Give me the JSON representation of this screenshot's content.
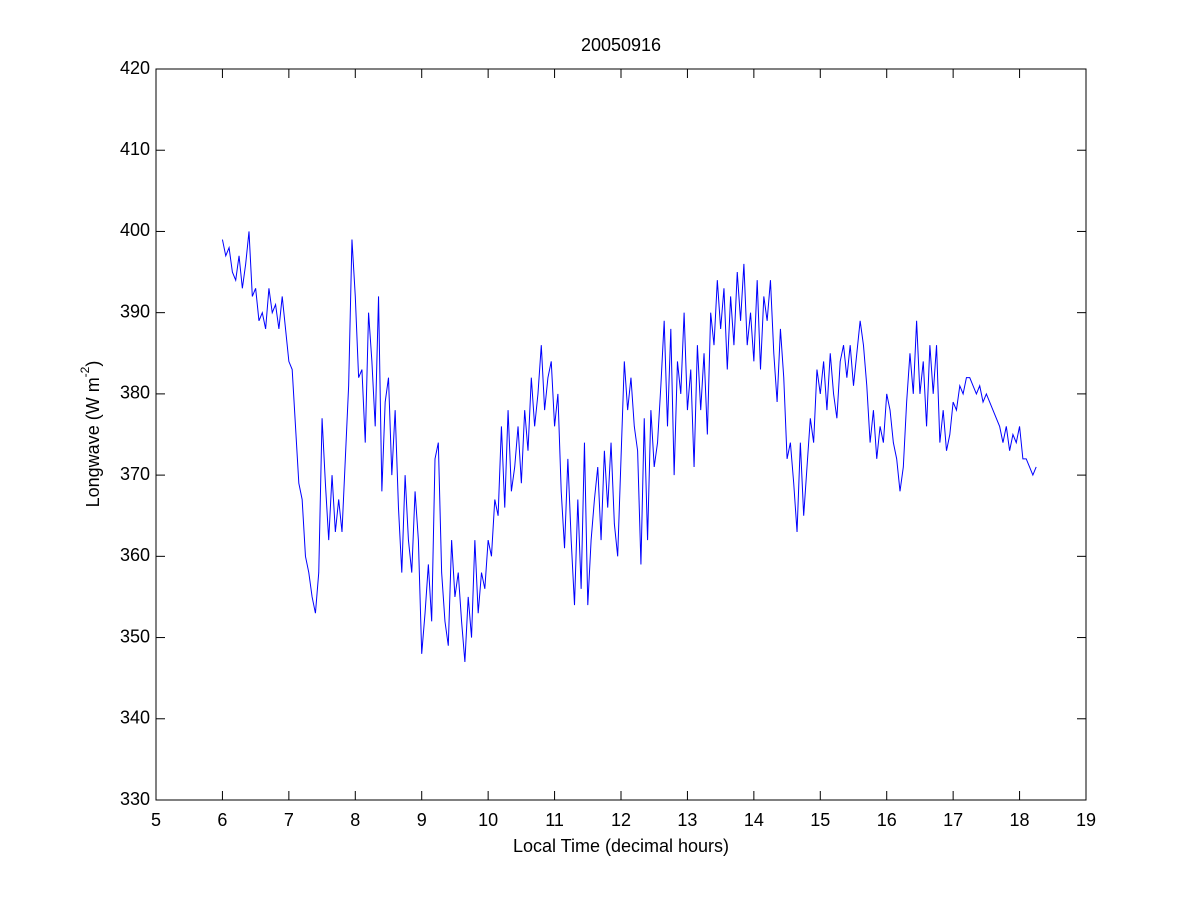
{
  "chart_data": {
    "type": "line",
    "title": "20050916",
    "xlabel": "Local Time (decimal hours)",
    "ylabel": {
      "text": "Longwave (W m",
      "superscript": "-2",
      "suffix": ")"
    },
    "xlim": [
      5,
      19
    ],
    "xticks": [
      5,
      6,
      7,
      8,
      9,
      10,
      11,
      12,
      13,
      14,
      15,
      16,
      17,
      18,
      19
    ],
    "ylim": [
      330,
      420
    ],
    "yticks": [
      330,
      340,
      350,
      360,
      370,
      380,
      390,
      400,
      410,
      420
    ],
    "grid": false,
    "series": [
      {
        "color": "#0000ff",
        "x": [
          6.0,
          6.05,
          6.1,
          6.15,
          6.2,
          6.25,
          6.3,
          6.35,
          6.4,
          6.45,
          6.5,
          6.55,
          6.6,
          6.65,
          6.7,
          6.75,
          6.8,
          6.85,
          6.9,
          6.95,
          7.0,
          7.05,
          7.1,
          7.15,
          7.2,
          7.25,
          7.3,
          7.35,
          7.4,
          7.45,
          7.5,
          7.55,
          7.6,
          7.65,
          7.7,
          7.75,
          7.8,
          7.85,
          7.9,
          7.95,
          8.0,
          8.05,
          8.1,
          8.15,
          8.2,
          8.25,
          8.3,
          8.35,
          8.4,
          8.45,
          8.5,
          8.55,
          8.6,
          8.65,
          8.7,
          8.75,
          8.8,
          8.85,
          8.9,
          8.95,
          9.0,
          9.05,
          9.1,
          9.15,
          9.2,
          9.25,
          9.3,
          9.35,
          9.4,
          9.45,
          9.5,
          9.55,
          9.6,
          9.65,
          9.7,
          9.75,
          9.8,
          9.85,
          9.9,
          9.95,
          10.0,
          10.05,
          10.1,
          10.15,
          10.2,
          10.25,
          10.3,
          10.35,
          10.4,
          10.45,
          10.5,
          10.55,
          10.6,
          10.65,
          10.7,
          10.75,
          10.8,
          10.85,
          10.9,
          10.95,
          11.0,
          11.05,
          11.1,
          11.15,
          11.2,
          11.25,
          11.3,
          11.35,
          11.4,
          11.45,
          11.5,
          11.55,
          11.6,
          11.65,
          11.7,
          11.75,
          11.8,
          11.85,
          11.9,
          11.95,
          12.0,
          12.05,
          12.1,
          12.15,
          12.2,
          12.25,
          12.3,
          12.35,
          12.4,
          12.45,
          12.5,
          12.55,
          12.6,
          12.65,
          12.7,
          12.75,
          12.8,
          12.85,
          12.9,
          12.95,
          13.0,
          13.05,
          13.1,
          13.15,
          13.2,
          13.25,
          13.3,
          13.35,
          13.4,
          13.45,
          13.5,
          13.55,
          13.6,
          13.65,
          13.7,
          13.75,
          13.8,
          13.85,
          13.9,
          13.95,
          14.0,
          14.05,
          14.1,
          14.15,
          14.2,
          14.25,
          14.3,
          14.35,
          14.4,
          14.45,
          14.5,
          14.55,
          14.6,
          14.65,
          14.7,
          14.75,
          14.8,
          14.85,
          14.9,
          14.95,
          15.0,
          15.05,
          15.1,
          15.15,
          15.2,
          15.25,
          15.3,
          15.35,
          15.4,
          15.45,
          15.5,
          15.55,
          15.6,
          15.65,
          15.7,
          15.75,
          15.8,
          15.85,
          15.9,
          15.95,
          16.0,
          16.05,
          16.1,
          16.15,
          16.2,
          16.25,
          16.3,
          16.35,
          16.4,
          16.45,
          16.5,
          16.55,
          16.6,
          16.65,
          16.7,
          16.75,
          16.8,
          16.85,
          16.9,
          16.95,
          17.0,
          17.05,
          17.1,
          17.15,
          17.2,
          17.25,
          17.3,
          17.35,
          17.4,
          17.45,
          17.5,
          17.55,
          17.6,
          17.65,
          17.7,
          17.75,
          17.8,
          17.85,
          17.9,
          17.95,
          18.0,
          18.05,
          18.1,
          18.15,
          18.2,
          18.25
        ],
        "values": [
          399,
          397,
          398,
          395,
          394,
          397,
          393,
          396,
          400,
          392,
          393,
          389,
          390,
          388,
          393,
          390,
          391,
          388,
          392,
          388,
          384,
          383,
          376,
          369,
          367,
          360,
          358,
          355,
          353,
          358,
          377,
          369,
          362,
          370,
          363,
          367,
          363,
          372,
          381,
          399,
          392,
          382,
          383,
          374,
          390,
          384,
          376,
          392,
          368,
          379,
          382,
          370,
          378,
          366,
          358,
          370,
          362,
          358,
          368,
          362,
          348,
          353,
          359,
          352,
          372,
          374,
          358,
          352,
          349,
          362,
          355,
          358,
          352,
          347,
          355,
          350,
          362,
          353,
          358,
          356,
          362,
          360,
          367,
          365,
          376,
          366,
          378,
          368,
          371,
          376,
          369,
          378,
          373,
          382,
          376,
          380,
          386,
          378,
          382,
          384,
          376,
          380,
          368,
          361,
          372,
          362,
          354,
          367,
          356,
          374,
          354,
          362,
          367,
          371,
          362,
          373,
          366,
          374,
          364,
          360,
          372,
          384,
          378,
          382,
          376,
          373,
          359,
          377,
          362,
          378,
          371,
          374,
          381,
          389,
          376,
          388,
          370,
          384,
          380,
          390,
          378,
          383,
          371,
          386,
          378,
          385,
          375,
          390,
          386,
          394,
          388,
          393,
          383,
          392,
          386,
          395,
          389,
          396,
          386,
          390,
          384,
          394,
          383,
          392,
          389,
          394,
          385,
          379,
          388,
          382,
          372,
          374,
          369,
          363,
          374,
          365,
          371,
          377,
          374,
          383,
          380,
          384,
          378,
          385,
          380,
          377,
          384,
          386,
          382,
          386,
          381,
          385,
          389,
          386,
          381,
          374,
          378,
          372,
          376,
          374,
          380,
          378,
          374,
          372,
          368,
          371,
          379,
          385,
          380,
          389,
          380,
          384,
          376,
          386,
          380,
          386,
          374,
          378,
          373,
          375,
          379,
          378,
          381,
          380,
          382,
          382,
          381,
          380,
          381,
          379,
          380,
          379,
          378,
          377,
          376,
          374,
          376,
          373,
          375,
          374,
          376,
          372,
          372,
          371,
          370,
          371
        ]
      }
    ]
  }
}
